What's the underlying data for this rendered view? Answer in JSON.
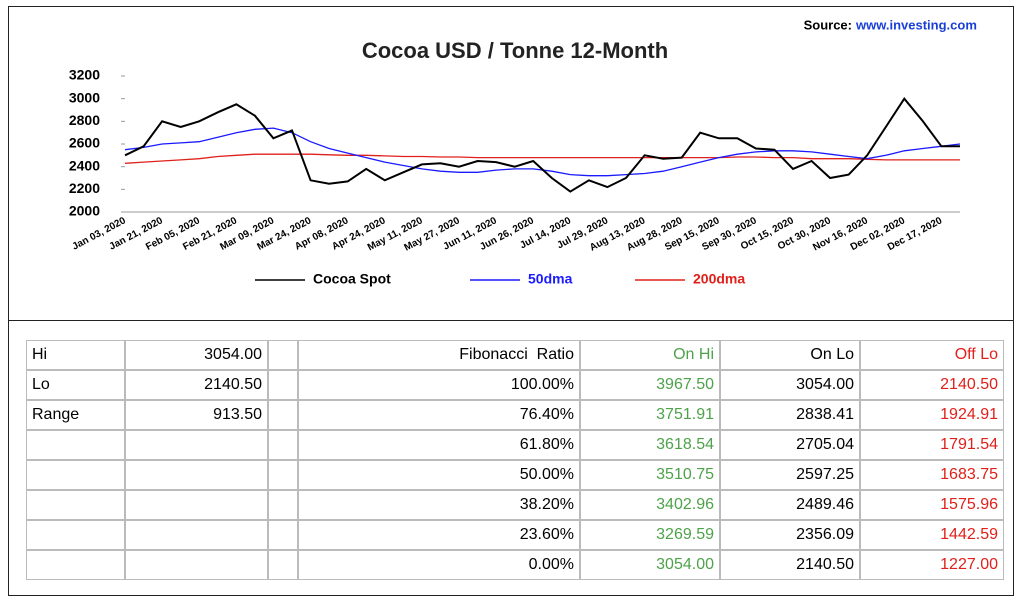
{
  "source": {
    "label": "Source:",
    "link": "www.investing.com"
  },
  "chart_data": {
    "type": "line",
    "title": "Cocoa USD / Tonne 12-Month",
    "categories": [
      "Jan 03, 2020",
      null,
      "Jan 21, 2020",
      null,
      "Feb 05, 2020",
      null,
      "Feb 21, 2020",
      null,
      "Mar 09, 2020",
      null,
      "Mar 24, 2020",
      null,
      "Apr 08, 2020",
      null,
      "Apr 24, 2020",
      null,
      "May 11, 2020",
      null,
      "May 27, 2020",
      null,
      "Jun 11, 2020",
      null,
      "Jun 26, 2020",
      null,
      "Jul 14, 2020",
      null,
      "Jul 29, 2020",
      null,
      "Aug 13, 2020",
      null,
      "Aug 28, 2020",
      null,
      "Sep 15, 2020",
      null,
      "Sep 30, 2020",
      null,
      "Oct 15, 2020",
      null,
      "Oct 30, 2020",
      null,
      "Nov 16, 2020",
      null,
      "Dec 02, 2020",
      null,
      "Dec 17, 2020",
      null
    ],
    "series": [
      {
        "name": "Cocoa Spot",
        "color": "#000000",
        "values": [
          2500,
          2580,
          2800,
          2750,
          2800,
          2880,
          2950,
          2850,
          2650,
          2720,
          2280,
          2250,
          2270,
          2380,
          2280,
          2350,
          2420,
          2430,
          2400,
          2450,
          2440,
          2400,
          2450,
          2300,
          2180,
          2280,
          2220,
          2300,
          2500,
          2470,
          2480,
          2700,
          2650,
          2650,
          2560,
          2550,
          2380,
          2450,
          2300,
          2330,
          2500,
          2750,
          3000,
          2800,
          2580,
          2580
        ]
      },
      {
        "name": "50dma",
        "color": "#1a1aff",
        "values": [
          2550,
          2570,
          2600,
          2610,
          2620,
          2660,
          2700,
          2730,
          2740,
          2700,
          2620,
          2560,
          2520,
          2480,
          2440,
          2410,
          2380,
          2360,
          2350,
          2350,
          2370,
          2380,
          2380,
          2360,
          2330,
          2320,
          2320,
          2330,
          2340,
          2360,
          2400,
          2440,
          2480,
          2510,
          2530,
          2540,
          2540,
          2530,
          2510,
          2490,
          2470,
          2500,
          2540,
          2560,
          2580,
          2600
        ]
      },
      {
        "name": "200dma",
        "color": "#e0201a",
        "values": [
          2430,
          2440,
          2450,
          2460,
          2470,
          2490,
          2500,
          2510,
          2510,
          2510,
          2510,
          2505,
          2500,
          2500,
          2495,
          2490,
          2490,
          2485,
          2485,
          2480,
          2480,
          2480,
          2480,
          2480,
          2480,
          2480,
          2480,
          2480,
          2480,
          2480,
          2480,
          2480,
          2480,
          2485,
          2485,
          2480,
          2480,
          2470,
          2470,
          2470,
          2465,
          2460,
          2460,
          2460,
          2460,
          2460
        ]
      }
    ],
    "ylim": [
      2000,
      3200
    ],
    "yticks": [
      2000,
      2200,
      2400,
      2600,
      2800,
      3000,
      3200
    ],
    "grid": false,
    "legend": "bottom"
  },
  "table": {
    "summary": [
      [
        "Hi",
        "3054.00"
      ],
      [
        "Lo",
        "2140.50"
      ],
      [
        "Range",
        "913.50"
      ]
    ],
    "header": [
      "Fibonacci  Ratio",
      "On Hi",
      "On Lo",
      "Off Lo"
    ],
    "header_colors": [
      "#000000",
      "#4ea24a",
      "#000000",
      "#e0201a"
    ],
    "rows": [
      [
        "100.00%",
        "3967.50",
        "3054.00",
        "2140.50"
      ],
      [
        "76.40%",
        "3751.91",
        "2838.41",
        "1924.91"
      ],
      [
        "61.80%",
        "3618.54",
        "2705.04",
        "1791.54"
      ],
      [
        "50.00%",
        "3510.75",
        "2597.25",
        "1683.75"
      ],
      [
        "38.20%",
        "3402.96",
        "2489.46",
        "1575.96"
      ],
      [
        "23.60%",
        "3269.59",
        "2356.09",
        "1442.59"
      ],
      [
        "0.00%",
        "3054.00",
        "2140.50",
        "1227.00"
      ]
    ]
  }
}
